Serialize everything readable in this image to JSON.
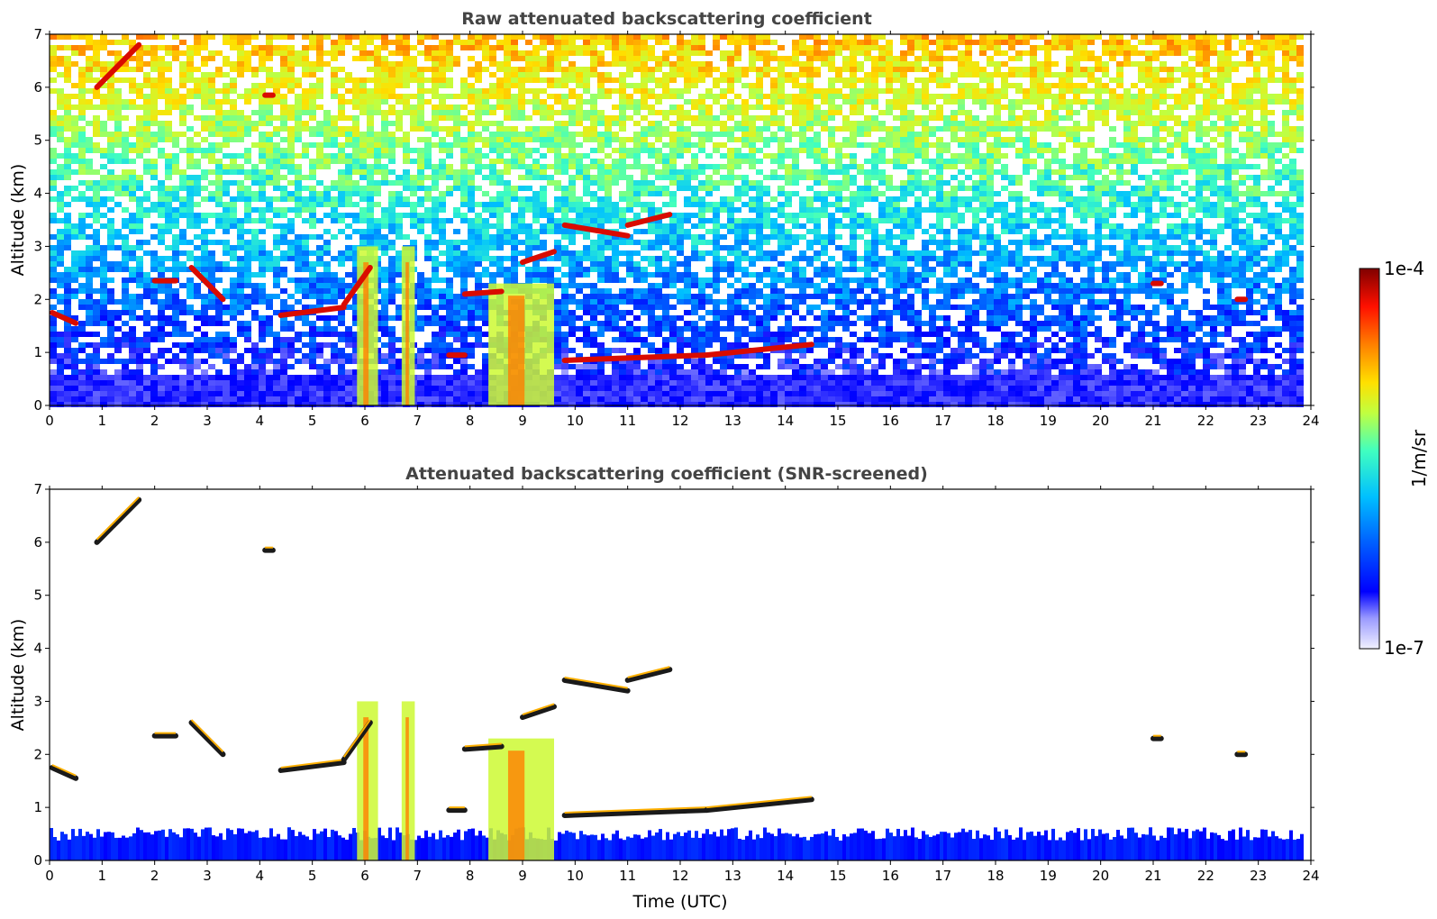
{
  "chart_data": [
    {
      "type": "heatmap",
      "title": "Raw attenuated backscattering coefficient",
      "xlabel": "",
      "ylabel": "Altitude (km)",
      "xlim": [
        0,
        24
      ],
      "ylim": [
        0,
        7
      ],
      "xticks": [
        "0",
        "1",
        "2",
        "3",
        "4",
        "5",
        "6",
        "7",
        "8",
        "9",
        "10",
        "11",
        "12",
        "13",
        "14",
        "15",
        "16",
        "17",
        "18",
        "19",
        "20",
        "21",
        "22",
        "23",
        "24"
      ],
      "yticks": [
        "0",
        "1",
        "2",
        "3",
        "4",
        "5",
        "6",
        "7"
      ],
      "screened": false,
      "features": {
        "boundary_layer_top_km": 0.5,
        "cloud_layers": [
          {
            "x": [
              0.05,
              0.5
            ],
            "y": [
              1.75,
              1.55
            ]
          },
          {
            "x": [
              2.0,
              2.4
            ],
            "y": [
              2.35,
              2.35
            ]
          },
          {
            "x": [
              2.7,
              3.3
            ],
            "y": [
              2.6,
              2.0
            ]
          },
          {
            "x": [
              4.4,
              5.6
            ],
            "y": [
              1.7,
              1.85
            ]
          },
          {
            "x": [
              5.6,
              6.1
            ],
            "y": [
              1.9,
              2.6
            ]
          },
          {
            "x": [
              7.6,
              7.9
            ],
            "y": [
              0.95,
              0.95
            ]
          },
          {
            "x": [
              7.9,
              8.6
            ],
            "y": [
              2.1,
              2.15
            ]
          },
          {
            "x": [
              9.0,
              9.6
            ],
            "y": [
              2.7,
              2.9
            ]
          },
          {
            "x": [
              9.8,
              11.0
            ],
            "y": [
              3.4,
              3.2
            ]
          },
          {
            "x": [
              11.0,
              11.8
            ],
            "y": [
              3.4,
              3.6
            ]
          },
          {
            "x": [
              9.8,
              12.5
            ],
            "y": [
              0.85,
              0.95
            ]
          },
          {
            "x": [
              12.5,
              14.5
            ],
            "y": [
              0.95,
              1.15
            ]
          },
          {
            "x": [
              21.0,
              21.15
            ],
            "y": [
              2.3,
              2.3
            ]
          },
          {
            "x": [
              22.6,
              22.75
            ],
            "y": [
              2.0,
              2.0
            ]
          },
          {
            "x": [
              0.9,
              1.7
            ],
            "y": [
              6.0,
              6.8
            ]
          },
          {
            "x": [
              4.1,
              4.25
            ],
            "y": [
              5.85,
              5.85
            ]
          }
        ],
        "precipitation_shafts": [
          {
            "x0": 5.85,
            "x1": 6.25,
            "top_km": 3.0
          },
          {
            "x0": 6.7,
            "x1": 6.95,
            "top_km": 3.0
          },
          {
            "x0": 8.35,
            "x1": 9.6,
            "top_km": 2.3
          }
        ]
      }
    },
    {
      "type": "heatmap",
      "title": "Attenuated backscattering coefficient (SNR-screened)",
      "xlabel": "Time (UTC)",
      "ylabel": "Altitude (km)",
      "xlim": [
        0,
        24
      ],
      "ylim": [
        0,
        7
      ],
      "xticks": [
        "0",
        "1",
        "2",
        "3",
        "4",
        "5",
        "6",
        "7",
        "8",
        "9",
        "10",
        "11",
        "12",
        "13",
        "14",
        "15",
        "16",
        "17",
        "18",
        "19",
        "20",
        "21",
        "22",
        "23",
        "24"
      ],
      "yticks": [
        "0",
        "1",
        "2",
        "3",
        "4",
        "5",
        "6",
        "7"
      ],
      "screened": true
    }
  ],
  "colorbar": {
    "label": "1/m/sr",
    "max_label": "1e-4",
    "min_label": "1e-7",
    "scale": "log",
    "range": [
      1e-07,
      0.0001
    ],
    "colors": [
      "#ffffff",
      "#c8c8ff",
      "#0000ff",
      "#0060ff",
      "#00c0ff",
      "#40ffc0",
      "#c0ff40",
      "#ffe000",
      "#ff8000",
      "#ff1000",
      "#800000"
    ]
  }
}
